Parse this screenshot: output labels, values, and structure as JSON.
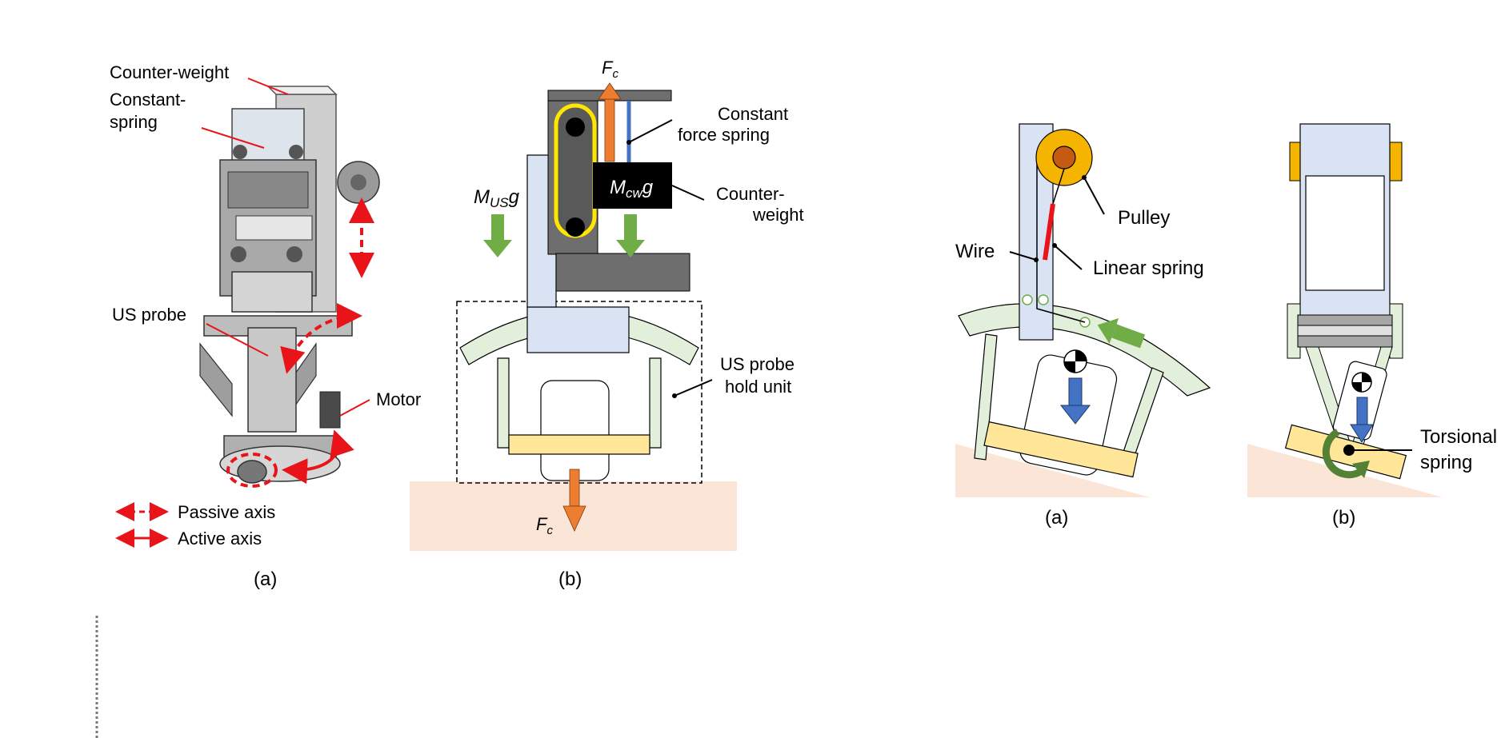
{
  "figure1": {
    "robot": {
      "label_counterweight": "Counter-weight",
      "label_constant_1": "Constant-",
      "label_constant_2": "spring",
      "label_us_probe": "US probe",
      "label_motor": "Motor",
      "legend_passive": "Passive axis",
      "legend_active": "Active axis",
      "caption": "(a)"
    },
    "mechanism": {
      "force_top_main": "F",
      "force_top_sub": "c",
      "force_bottom_main": "F",
      "force_bottom_sub": "c",
      "mus_main": "M",
      "mus_sub": "US",
      "mus_tail": "g",
      "mcw_main": "M",
      "mcw_sub": "cw",
      "mcw_tail": "g",
      "label_spring_1": "Constant",
      "label_spring_2": "force spring",
      "label_counter_1": "Counter-",
      "label_counter_2": "weight",
      "label_hold_1": "US probe",
      "label_hold_2": "hold unit",
      "caption": "(b)"
    }
  },
  "figure2": {
    "panel_a": {
      "label_pulley": "Pulley",
      "label_wire": "Wire",
      "label_linear_spring": "Linear spring",
      "caption": "(a)"
    },
    "panel_b": {
      "label_torsional_1": "Torsional",
      "label_torsional_2": "spring",
      "caption": "(b)"
    }
  },
  "colors": {
    "red_axis": "#e8141a",
    "force_orange": "#ed7d31",
    "spring_blue": "#4472c4",
    "gravity_green": "#70ad47",
    "probe_blue": "#dae3f3",
    "arc_green": "#e2efda",
    "pad_yellow": "#ffe699",
    "skin": "#fbe5d6",
    "pulley_orange": "#f5b400",
    "pulley_core": "#c55a11",
    "frame_gray": "#6e6e6e"
  }
}
